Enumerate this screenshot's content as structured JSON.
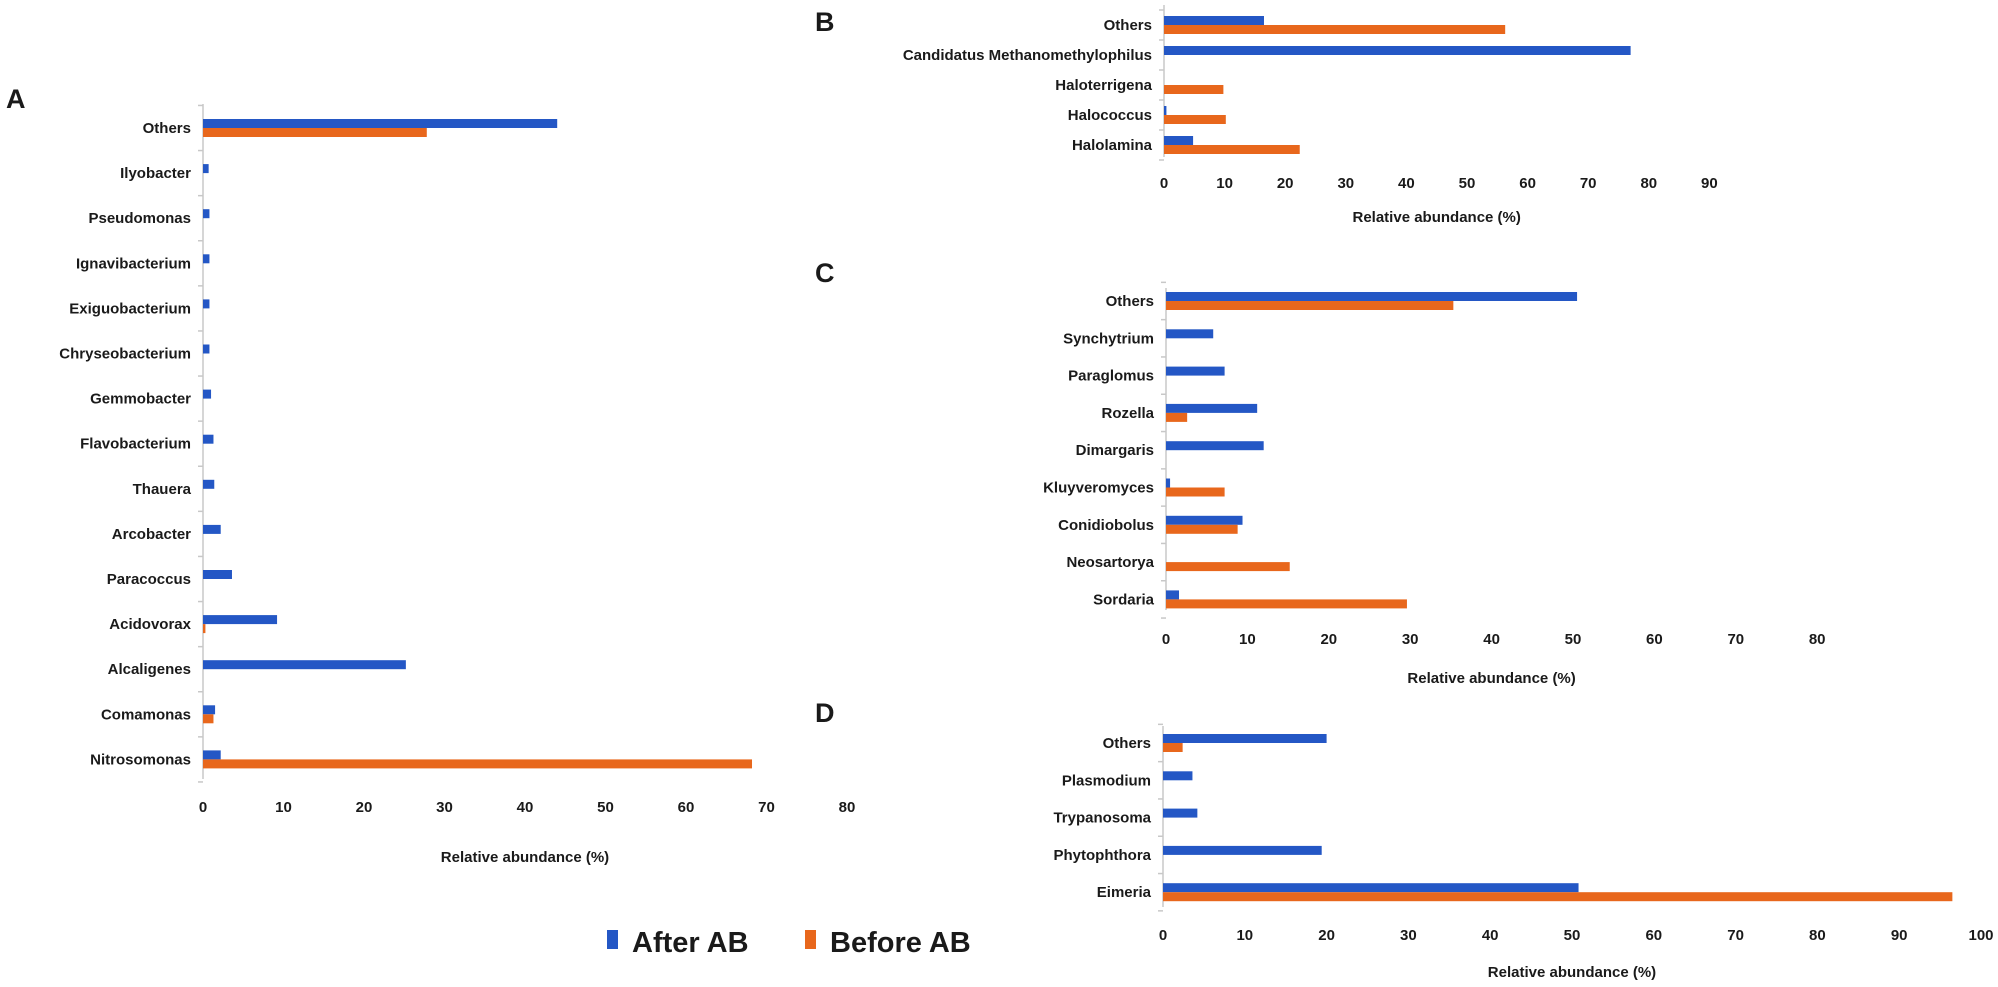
{
  "legend": {
    "after_label": "After AB",
    "before_label": "Before AB",
    "after_color": "#2457c5",
    "before_color": "#e8671c"
  },
  "chart_data": [
    {
      "panel": "A",
      "type": "bar",
      "orientation": "horizontal",
      "xlabel": "Relative abundance (%)",
      "xlim": [
        0,
        80
      ],
      "xticks": [
        0,
        10,
        20,
        30,
        40,
        50,
        60,
        70,
        80
      ],
      "categories": [
        "Others",
        "Ilyobacter",
        "Pseudomonas",
        "Ignavibacterium",
        "Exiguobacterium",
        "Chryseobacterium",
        "Gemmobacter",
        "Flavobacterium",
        "Thauera",
        "Arcobacter",
        "Paracoccus",
        "Acidovorax",
        "Alcaligenes",
        "Comamonas",
        "Nitrosomonas"
      ],
      "series": [
        {
          "name": "After AB",
          "values": [
            44,
            0.7,
            0.8,
            0.8,
            0.8,
            0.8,
            1.0,
            1.3,
            1.4,
            2.2,
            3.6,
            9.2,
            25.2,
            1.5,
            2.2
          ]
        },
        {
          "name": "Before AB",
          "values": [
            27.8,
            0,
            0,
            0,
            0,
            0,
            0,
            0,
            0,
            0,
            0,
            0.3,
            0,
            1.3,
            68.2
          ]
        }
      ]
    },
    {
      "panel": "B",
      "type": "bar",
      "orientation": "horizontal",
      "xlabel": "Relative abundance (%)",
      "xlim": [
        0,
        90
      ],
      "xticks": [
        0,
        10,
        20,
        30,
        40,
        50,
        60,
        70,
        80,
        90
      ],
      "categories": [
        "Others",
        "Candidatus Methanomethylophilus",
        "Haloterrigena",
        "Halococcus",
        "Halolamina"
      ],
      "series": [
        {
          "name": "After AB",
          "values": [
            16.5,
            77,
            0,
            0.4,
            4.8
          ]
        },
        {
          "name": "Before AB",
          "values": [
            56.3,
            0,
            9.8,
            10.2,
            22.4
          ]
        }
      ]
    },
    {
      "panel": "C",
      "type": "bar",
      "orientation": "horizontal",
      "xlabel": "Relative abundance (%)",
      "xlim": [
        0,
        80
      ],
      "xticks": [
        0,
        10,
        20,
        30,
        40,
        50,
        60,
        70,
        80
      ],
      "categories": [
        "Others",
        "Synchytrium",
        "Paraglomus",
        "Rozella",
        "Dimargaris",
        "Kluyveromyces",
        "Conidiobolus",
        "Neosartorya",
        "Sordaria"
      ],
      "series": [
        {
          "name": "After AB",
          "values": [
            50.5,
            5.8,
            7.2,
            11.2,
            12,
            0.5,
            9.4,
            0,
            1.6
          ]
        },
        {
          "name": "Before AB",
          "values": [
            35.3,
            0,
            0,
            2.6,
            0,
            7.2,
            8.8,
            15.2,
            29.6
          ]
        }
      ]
    },
    {
      "panel": "D",
      "type": "bar",
      "orientation": "horizontal",
      "xlabel": "Relative abundance (%)",
      "xlim": [
        0,
        100
      ],
      "xticks": [
        0,
        10,
        20,
        30,
        40,
        50,
        60,
        70,
        80,
        90,
        100
      ],
      "categories": [
        "Others",
        "Plasmodium",
        "Trypanosoma",
        "Phytophthora",
        "Eimeria"
      ],
      "series": [
        {
          "name": "After AB",
          "values": [
            20,
            3.6,
            4.2,
            19.4,
            50.8
          ]
        },
        {
          "name": "Before AB",
          "values": [
            2.4,
            0,
            0,
            0,
            96.5
          ]
        }
      ]
    }
  ]
}
